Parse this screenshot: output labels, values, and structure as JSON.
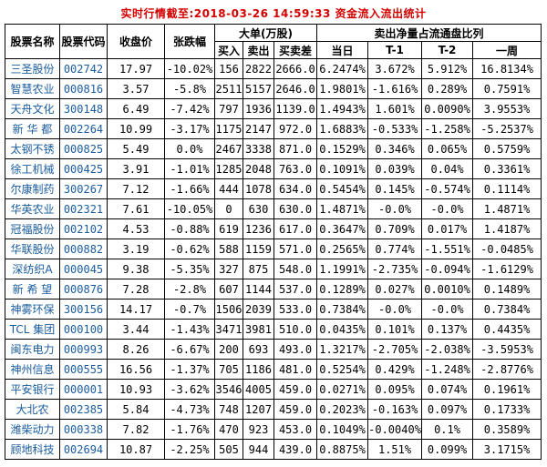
{
  "title": "实时行情截至:2018-03-26 14:59:33 资金流入流出统计",
  "colors": {
    "title_red": "#d40000",
    "stock_link_blue": "#1a5c9e",
    "border": "#000000",
    "background": "#ffffff"
  },
  "table": {
    "headers": {
      "stock_name": "股票名称",
      "stock_code": "股票代码",
      "close_price": "收盘价",
      "change_pct": "张跌幅",
      "big_orders_group": "大单(万股)",
      "buy": "买入",
      "sell": "卖出",
      "diff": "买卖差",
      "net_sell_ratio_group": "卖出净量占流通盘比列",
      "today": "当日",
      "t_minus_1": "T-1",
      "t_minus_2": "T-2",
      "week": "一周"
    },
    "rows": [
      [
        "三圣股份",
        "002742",
        "17.97",
        "-10.02%",
        "156",
        "2822",
        "2666.0",
        "6.2474%",
        "3.672%",
        "5.912%",
        "16.8134%"
      ],
      [
        "智慧农业",
        "000816",
        "3.57",
        "-5.8%",
        "2511",
        "5157",
        "2646.0",
        "1.9801%",
        "-1.616%",
        "0.289%",
        "0.7591%"
      ],
      [
        "天舟文化",
        "300148",
        "6.49",
        "-7.42%",
        "797",
        "1936",
        "1139.0",
        "1.4943%",
        "1.601%",
        "0.0090%",
        "3.9553%"
      ],
      [
        "新 华 都",
        "002264",
        "10.99",
        "-3.17%",
        "1175",
        "2147",
        "972.0",
        "1.6883%",
        "-0.533%",
        "-1.258%",
        "-5.2537%"
      ],
      [
        "太钢不锈",
        "000825",
        "5.49",
        "0.0%",
        "2467",
        "3338",
        "871.0",
        "0.1529%",
        "0.346%",
        "0.065%",
        "0.5759%"
      ],
      [
        "徐工机械",
        "000425",
        "3.91",
        "-1.01%",
        "1285",
        "2048",
        "763.0",
        "0.1091%",
        "0.039%",
        "0.04%",
        "0.3361%"
      ],
      [
        "尔康制药",
        "300267",
        "7.12",
        "-1.66%",
        "444",
        "1078",
        "634.0",
        "0.5454%",
        "0.145%",
        "-0.574%",
        "0.1114%"
      ],
      [
        "华英农业",
        "002321",
        "7.61",
        "-10.05%",
        "0",
        "630",
        "630.0",
        "1.4871%",
        "-0.0%",
        "-0.0%",
        "1.4871%"
      ],
      [
        "冠福股份",
        "002102",
        "4.53",
        "-0.88%",
        "619",
        "1236",
        "617.0",
        "0.3647%",
        "0.709%",
        "0.017%",
        "1.4187%"
      ],
      [
        "华联股份",
        "000882",
        "3.19",
        "-0.62%",
        "588",
        "1159",
        "571.0",
        "0.2565%",
        "0.774%",
        "-1.551%",
        "-0.0485%"
      ],
      [
        "深纺织A",
        "000045",
        "9.38",
        "-5.35%",
        "327",
        "875",
        "548.0",
        "1.1991%",
        "-2.735%",
        "-0.094%",
        "-1.6129%"
      ],
      [
        "新 希 望",
        "000876",
        "7.28",
        "-2.8%",
        "607",
        "1144",
        "537.0",
        "0.1289%",
        "0.027%",
        "0.0010%",
        "0.1489%"
      ],
      [
        "神雾环保",
        "300156",
        "14.17",
        "-0.7%",
        "1506",
        "2039",
        "533.0",
        "0.7384%",
        "-0.0%",
        "-0.0%",
        "0.7384%"
      ],
      [
        "TCL 集团",
        "000100",
        "3.44",
        "-1.43%",
        "3471",
        "3981",
        "510.0",
        "0.0435%",
        "0.101%",
        "0.137%",
        "0.4435%"
      ],
      [
        "闽东电力",
        "000993",
        "8.26",
        "-6.67%",
        "200",
        "693",
        "493.0",
        "1.3217%",
        "-2.705%",
        "-2.038%",
        "-3.5953%"
      ],
      [
        "神州信息",
        "000555",
        "16.56",
        "-1.37%",
        "705",
        "1186",
        "481.0",
        "0.5254%",
        "0.429%",
        "-1.248%",
        "-2.8776%"
      ],
      [
        "平安银行",
        "000001",
        "10.93",
        "-3.62%",
        "3546",
        "4005",
        "459.0",
        "0.0271%",
        "0.095%",
        "0.074%",
        "0.1961%"
      ],
      [
        "大北农",
        "002385",
        "5.84",
        "-4.73%",
        "748",
        "1207",
        "459.0",
        "0.2023%",
        "-0.163%",
        "0.097%",
        "0.1733%"
      ],
      [
        "潍柴动力",
        "000338",
        "7.82",
        "-1.76%",
        "470",
        "923",
        "453.0",
        "0.1049%",
        "-0.0040%",
        "0.1%",
        "0.3589%"
      ],
      [
        "顾地科技",
        "002694",
        "10.87",
        "-2.25%",
        "505",
        "944",
        "439.0",
        "0.8875%",
        "1.51%",
        "0.099%",
        "3.1715%"
      ]
    ]
  }
}
